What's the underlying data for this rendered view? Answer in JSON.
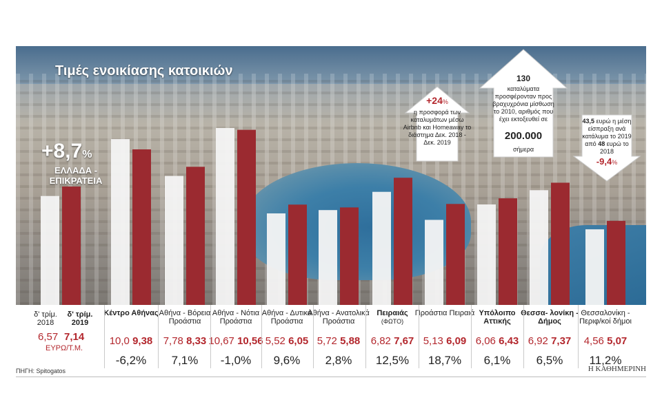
{
  "title": "Τιμές ενοικίασης κατοικιών",
  "greece": {
    "pct_value": "+8,7",
    "pct_sign": "%",
    "label": "ΕΛΛΑΔΑ - ΕΠΙΚΡΑΤΕΙΑ",
    "q4_2018_label": "δ' τρίμ. 2018",
    "q4_2019_label": "δ' τρίμ. 2019",
    "v2018": "6,57",
    "v2019": "7,14",
    "unit": "ΕΥΡΩ/Τ.Μ."
  },
  "chart_data": {
    "type": "bar",
    "title": "Τιμές ενοικίασης κατοικιών",
    "ylabel": "ΕΥΡΩ/Τ.Μ.",
    "ylim": [
      0,
      11
    ],
    "series": [
      {
        "name": "δ' τρίμ. 2018",
        "color": "#f4f4f4",
        "values": [
          6.57,
          10.0,
          7.78,
          10.67,
          5.52,
          5.72,
          6.82,
          5.13,
          6.06,
          6.92,
          4.56
        ]
      },
      {
        "name": "δ' τρίμ. 2019",
        "color": "#9b2a30",
        "values": [
          7.14,
          9.38,
          8.33,
          10.56,
          6.05,
          5.88,
          7.67,
          6.09,
          6.43,
          7.37,
          5.07
        ]
      }
    ],
    "categories": [
      "Ελλάδα - Επικράτεια",
      "Κέντρο Αθήνας",
      "Αθήνα - Βόρεια Προάστια",
      "Αθήνα - Νότια Προάστια",
      "Αθήνα - Δυτικά Προάστια",
      "Αθήνα - Ανατολικά Προάστια",
      "Πειραιάς",
      "Προάστια Πειραιά",
      "Υπόλοιπο Αττικής",
      "Θεσσαλονίκη - Δήμος",
      "Θεσσαλονίκη - Περιφ/κοί δήμοι"
    ]
  },
  "regions": [
    {
      "name": "Κέντρο Αθήνας",
      "bold": true,
      "v2018": "10,0",
      "v2019": "9,38",
      "change": "-6,2%"
    },
    {
      "name": "Αθήνα - Βόρεια Προάστια",
      "bold": false,
      "v2018": "7,78",
      "v2019": "8,33",
      "change": "7,1%"
    },
    {
      "name": "Αθήνα - Νότια Προάστια",
      "bold": false,
      "v2018": "10,67",
      "v2019": "10,56",
      "change": "-1,0%"
    },
    {
      "name": "Αθήνα - Δυτικά Προάστια",
      "bold": false,
      "v2018": "5,52",
      "v2019": "6,05",
      "change": "9,6%"
    },
    {
      "name": "Αθήνα - Ανατολικά Προάστια",
      "bold": false,
      "v2018": "5,72",
      "v2019": "5,88",
      "change": "2,8%"
    },
    {
      "name": "Πειραιάς",
      "sub": "(ΦΩΤΟ)",
      "bold": true,
      "v2018": "6,82",
      "v2019": "7,67",
      "change": "12,5%"
    },
    {
      "name": "Προάστια Πειραιά",
      "bold": false,
      "v2018": "5,13",
      "v2019": "6,09",
      "change": "18,7%"
    },
    {
      "name": "Υπόλοιπο Αττικής",
      "bold": true,
      "v2018": "6,06",
      "v2019": "6,43",
      "change": "6,1%"
    },
    {
      "name": "Θεσσα- λονίκη - Δήμος",
      "bold": true,
      "v2018": "6,92",
      "v2019": "7,37",
      "change": "6,5%"
    },
    {
      "name": "Θεσσαλονίκη - Περιφ/κοί δήμοι",
      "bold": false,
      "v2018": "4,56",
      "v2019": "5,07",
      "change": "11,2%"
    }
  ],
  "callouts": {
    "airbnb": {
      "pct": "+24",
      "pct_sign": "%",
      "text": "η προσφορά των καταλυμάτων μέσω Airbnb και Homeaway το διάστημα Δεκ. 2018 - Δεκ. 2019"
    },
    "short_term": {
      "top": "130",
      "text": "καταλύματα προσφέρονταν προς βραχυχρόνια μίσθωση το 2010, αριθμός που έχει εκτοξευθεί σε",
      "big": "200.000",
      "after": "σήμερα"
    },
    "revenue": {
      "text_a": "43,5",
      "text_b": " ευρώ η μέση είσπραξη ανά κατάλυμα το 2019 από ",
      "text_c": "48",
      "text_d": " ευρώ το 2018",
      "pct": "-9,4",
      "pct_sign": "%"
    }
  },
  "source": "ΠΗΓΗ: Spitogatos",
  "brand": "Η ΚΑΘΗΜΕΡΙΝΗ"
}
